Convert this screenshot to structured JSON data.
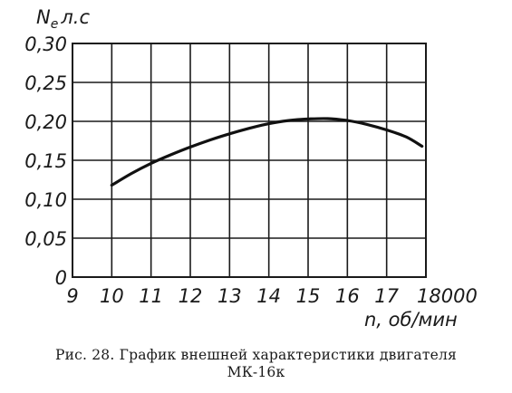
{
  "chart_data": {
    "type": "line",
    "ylabel": "N",
    "ylabel_sub": "e",
    "ylabel_unit": "л.с",
    "xlabel": "n, об/мин",
    "x_ticks": [
      "9",
      "10",
      "11",
      "12",
      "13",
      "14",
      "15",
      "16",
      "17",
      "18000"
    ],
    "y_ticks": [
      "0",
      "0,05",
      "0,10",
      "0,15",
      "0,20",
      "0,25",
      "0,30"
    ],
    "xlim": [
      9000,
      18000
    ],
    "ylim": [
      0,
      0.3
    ],
    "grid": true,
    "series": [
      {
        "x": [
          10000,
          10500,
          11000,
          11500,
          12000,
          12500,
          13000,
          13500,
          14000,
          14500,
          15000,
          15500,
          16000,
          16500,
          17000,
          17500,
          17900
        ],
        "y": [
          0.118,
          0.133,
          0.146,
          0.157,
          0.167,
          0.176,
          0.184,
          0.191,
          0.197,
          0.201,
          0.203,
          0.2035,
          0.201,
          0.196,
          0.189,
          0.18,
          0.168
        ]
      }
    ]
  },
  "caption": {
    "line1": "Рис. 28. График внешней характеристики двигателя",
    "line2": "МК-16к"
  }
}
